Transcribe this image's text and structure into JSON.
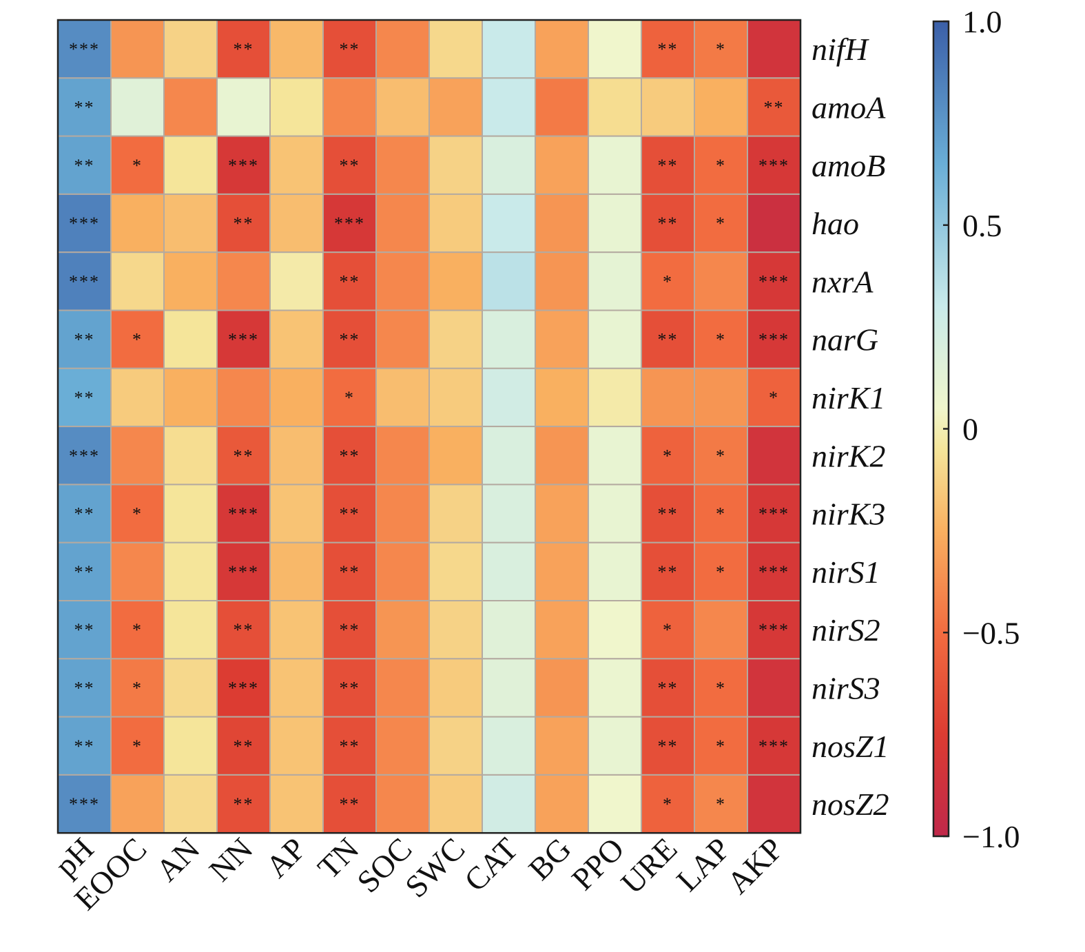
{
  "chart_data": {
    "type": "heatmap",
    "title": "",
    "xlabel": "",
    "ylabel": "",
    "columns": [
      "pH",
      "EOOC",
      "AN",
      "NN",
      "AP",
      "TN",
      "SOC",
      "SWC",
      "CAT",
      "BG",
      "PPO",
      "URE",
      "LAP",
      "AKP"
    ],
    "rows": [
      "nifH",
      "amoA",
      "amoB",
      "hao",
      "nxrA",
      "narG",
      "nirK1",
      "nirK2",
      "nirK3",
      "nirS1",
      "nirS2",
      "nirS3",
      "nosZ1",
      "nosZ2"
    ],
    "values": [
      [
        0.8,
        -0.35,
        -0.12,
        -0.65,
        -0.22,
        -0.65,
        -0.4,
        -0.1,
        0.3,
        -0.3,
        0.05,
        -0.55,
        -0.45,
        -0.85
      ],
      [
        0.7,
        0.15,
        -0.4,
        0.1,
        -0.05,
        -0.4,
        -0.2,
        -0.3,
        0.3,
        -0.45,
        -0.08,
        -0.15,
        -0.25,
        -0.6
      ],
      [
        0.7,
        -0.5,
        -0.05,
        -0.8,
        -0.18,
        -0.65,
        -0.4,
        -0.12,
        0.2,
        -0.3,
        0.1,
        -0.65,
        -0.5,
        -0.8
      ],
      [
        0.85,
        -0.25,
        -0.2,
        -0.65,
        -0.2,
        -0.8,
        -0.4,
        -0.15,
        0.3,
        -0.35,
        0.1,
        -0.65,
        -0.5,
        -0.9
      ],
      [
        0.85,
        -0.1,
        -0.25,
        -0.4,
        -0.02,
        -0.65,
        -0.4,
        -0.25,
        0.35,
        -0.35,
        0.12,
        -0.5,
        -0.4,
        -0.8
      ],
      [
        0.7,
        -0.5,
        -0.05,
        -0.8,
        -0.18,
        -0.65,
        -0.4,
        -0.12,
        0.2,
        -0.3,
        0.1,
        -0.65,
        -0.5,
        -0.8
      ],
      [
        0.65,
        -0.15,
        -0.25,
        -0.4,
        -0.25,
        -0.5,
        -0.2,
        -0.15,
        0.25,
        -0.25,
        -0.02,
        -0.35,
        -0.35,
        -0.55
      ],
      [
        0.8,
        -0.4,
        -0.08,
        -0.6,
        -0.2,
        -0.65,
        -0.4,
        -0.25,
        0.2,
        -0.35,
        0.1,
        -0.55,
        -0.45,
        -0.85
      ],
      [
        0.7,
        -0.5,
        -0.05,
        -0.8,
        -0.18,
        -0.65,
        -0.4,
        -0.12,
        0.2,
        -0.3,
        0.1,
        -0.65,
        -0.5,
        -0.8
      ],
      [
        0.7,
        -0.4,
        -0.05,
        -0.8,
        -0.22,
        -0.65,
        -0.4,
        -0.1,
        0.2,
        -0.3,
        0.1,
        -0.65,
        -0.5,
        -0.8
      ],
      [
        0.7,
        -0.5,
        -0.05,
        -0.65,
        -0.18,
        -0.65,
        -0.35,
        -0.12,
        0.15,
        -0.3,
        0.05,
        -0.55,
        -0.4,
        -0.8
      ],
      [
        0.7,
        -0.45,
        -0.1,
        -0.75,
        -0.18,
        -0.65,
        -0.4,
        -0.15,
        0.15,
        -0.35,
        0.08,
        -0.65,
        -0.5,
        -0.85
      ],
      [
        0.7,
        -0.5,
        -0.05,
        -0.7,
        -0.18,
        -0.65,
        -0.4,
        -0.12,
        0.2,
        -0.3,
        0.1,
        -0.65,
        -0.5,
        -0.8
      ],
      [
        0.8,
        -0.3,
        -0.1,
        -0.65,
        -0.18,
        -0.65,
        -0.4,
        -0.15,
        0.25,
        -0.3,
        0.05,
        -0.55,
        -0.4,
        -0.85
      ]
    ],
    "significance": [
      [
        "***",
        "",
        "",
        "**",
        "",
        "**",
        "",
        "",
        "",
        "",
        "",
        "**",
        "*",
        ""
      ],
      [
        "**",
        "",
        "",
        "",
        "",
        "",
        "",
        "",
        "",
        "",
        "",
        "",
        "",
        "**"
      ],
      [
        "**",
        "*",
        "",
        "***",
        "",
        "**",
        "",
        "",
        "",
        "",
        "",
        "**",
        "*",
        "***"
      ],
      [
        "***",
        "",
        "",
        "**",
        "",
        "***",
        "",
        "",
        "",
        "",
        "",
        "**",
        "*",
        ""
      ],
      [
        "***",
        "",
        "",
        "",
        "",
        "**",
        "",
        "",
        "",
        "",
        "",
        "*",
        "",
        "***"
      ],
      [
        "**",
        "*",
        "",
        "***",
        "",
        "**",
        "",
        "",
        "",
        "",
        "",
        "**",
        "*",
        "***"
      ],
      [
        "**",
        "",
        "",
        "",
        "",
        "*",
        "",
        "",
        "",
        "",
        "",
        "",
        "",
        "*"
      ],
      [
        "***",
        "",
        "",
        "**",
        "",
        "**",
        "",
        "",
        "",
        "",
        "",
        "*",
        "*",
        ""
      ],
      [
        "**",
        "*",
        "",
        "***",
        "",
        "**",
        "",
        "",
        "",
        "",
        "",
        "**",
        "*",
        "***"
      ],
      [
        "**",
        "",
        "",
        "***",
        "",
        "**",
        "",
        "",
        "",
        "",
        "",
        "**",
        "*",
        "***"
      ],
      [
        "**",
        "*",
        "",
        "**",
        "",
        "**",
        "",
        "",
        "",
        "",
        "",
        "*",
        "",
        "***"
      ],
      [
        "**",
        "*",
        "",
        "***",
        "",
        "**",
        "",
        "",
        "",
        "",
        "",
        "**",
        "*",
        ""
      ],
      [
        "**",
        "*",
        "",
        "**",
        "",
        "**",
        "",
        "",
        "",
        "",
        "",
        "**",
        "*",
        "***"
      ],
      [
        "***",
        "",
        "",
        "**",
        "",
        "**",
        "",
        "",
        "",
        "",
        "",
        "*",
        "*",
        ""
      ]
    ],
    "colorbar": {
      "range": [
        -1.0,
        1.0
      ],
      "ticks": [
        1.0,
        0.5,
        0,
        -0.5,
        -1.0
      ],
      "tick_labels": [
        "1.0",
        "0.5",
        "0",
        "−0.5",
        "−1.0"
      ],
      "colors": [
        "#c0284a",
        "#dc3c32",
        "#f26c40",
        "#f9b060",
        "#f5e59a",
        "#f0f6cc",
        "#c9eaea",
        "#6aaed6",
        "#3b5fa8"
      ],
      "color_stops": [
        -1.0,
        -0.75,
        -0.5,
        -0.25,
        -0.05,
        0.05,
        0.3,
        0.65,
        1.0
      ],
      "placement": "right"
    }
  }
}
